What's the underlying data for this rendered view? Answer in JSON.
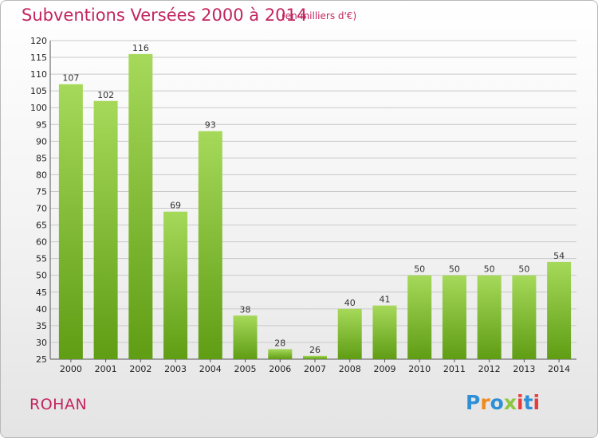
{
  "header": {
    "title": "Subventions Versées 2000 à 2014",
    "unit": "(en milliers d'€)"
  },
  "footer": {
    "commune": "ROHAN",
    "logo_text": "Proxiti",
    "logo_colors": [
      "#2f8fd6",
      "#f08a1c",
      "#2f8fd6",
      "#8cc63f",
      "#e73c3c",
      "#2f8fd6",
      "#e73c3c"
    ]
  },
  "colors": {
    "title": "#c2255f",
    "bar_light": "#a6d95a",
    "bar_dark": "#5f9d14",
    "grid": "#c8c8c8"
  },
  "chart_data": {
    "type": "bar",
    "categories": [
      "2000",
      "2001",
      "2002",
      "2003",
      "2004",
      "2005",
      "2006",
      "2007",
      "2008",
      "2009",
      "2010",
      "2011",
      "2012",
      "2013",
      "2014"
    ],
    "values": [
      107,
      102,
      116,
      69,
      93,
      38,
      28,
      26,
      40,
      41,
      50,
      50,
      50,
      50,
      54
    ],
    "title": "Subventions Versées 2000 à 2014",
    "xlabel": "",
    "ylabel": "",
    "ylim": [
      25,
      120
    ],
    "yticks": [
      25,
      30,
      35,
      40,
      45,
      50,
      55,
      60,
      65,
      70,
      75,
      80,
      85,
      90,
      95,
      100,
      105,
      110,
      115,
      120
    ],
    "grid": true,
    "data_labels": true
  }
}
